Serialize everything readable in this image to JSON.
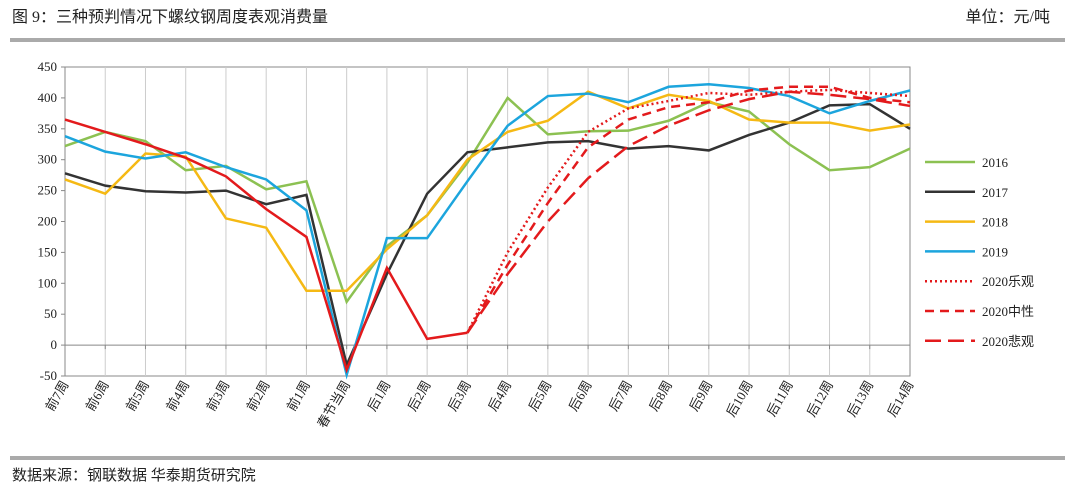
{
  "header": {
    "title": "图 9：三种预判情况下螺纹钢周度表观消费量",
    "unit": "单位：元/吨"
  },
  "footer": {
    "source": "数据来源：钢联数据 华泰期货研究院"
  },
  "chart_data": {
    "type": "line",
    "categories": [
      "前7周",
      "前6周",
      "前5周",
      "前4周",
      "前3周",
      "前2周",
      "前1周",
      "春节当周",
      "后1周",
      "后2周",
      "后3周",
      "后4周",
      "后5周",
      "后6周",
      "后7周",
      "后8周",
      "后9周",
      "后10周",
      "后11周",
      "后12周",
      "后13周",
      "后14周"
    ],
    "ylim": [
      -50,
      450
    ],
    "yticks": [
      -50,
      0,
      50,
      100,
      150,
      200,
      250,
      300,
      350,
      400,
      450
    ],
    "grid": true,
    "legend": "right",
    "series": [
      {
        "name": "2016",
        "color": "#8cc152",
        "style": "solid",
        "values": [
          322,
          345,
          330,
          283,
          290,
          252,
          265,
          70,
          160,
          210,
          295,
          400,
          341,
          346,
          347,
          363,
          393,
          378,
          325,
          283,
          288,
          318
        ]
      },
      {
        "name": "2017",
        "color": "#333333",
        "style": "solid",
        "values": [
          278,
          258,
          249,
          247,
          250,
          228,
          243,
          -32,
          115,
          245,
          312,
          320,
          328,
          330,
          318,
          322,
          315,
          340,
          360,
          388,
          390,
          350
        ]
      },
      {
        "name": "2018",
        "color": "#f5b914",
        "style": "solid",
        "values": [
          268,
          245,
          310,
          305,
          205,
          190,
          88,
          88,
          155,
          210,
          300,
          345,
          363,
          410,
          383,
          405,
          395,
          365,
          360,
          360,
          347,
          357
        ]
      },
      {
        "name": "2019",
        "color": "#1ca5dd",
        "style": "solid",
        "values": [
          338,
          313,
          302,
          312,
          288,
          268,
          218,
          -48,
          173,
          173,
          265,
          355,
          403,
          407,
          393,
          418,
          422,
          416,
          403,
          375,
          395,
          412
        ]
      },
      {
        "name": "2020乐观",
        "color": "#e31a1c",
        "style": "dotted",
        "values": [
          365,
          345,
          325,
          303,
          273,
          220,
          175,
          -40,
          125,
          10,
          20,
          150,
          255,
          345,
          383,
          395,
          408,
          405,
          410,
          413,
          408,
          403
        ]
      },
      {
        "name": "2020中性",
        "color": "#e31a1c",
        "style": "dashed",
        "values": [
          null,
          null,
          null,
          null,
          null,
          null,
          null,
          null,
          null,
          null,
          20,
          130,
          230,
          320,
          365,
          385,
          393,
          412,
          418,
          418,
          400,
          393
        ]
      },
      {
        "name": "2020悲观",
        "color": "#e31a1c",
        "style": "longdash",
        "values": [
          null,
          null,
          null,
          null,
          null,
          null,
          null,
          null,
          null,
          null,
          20,
          115,
          200,
          270,
          322,
          355,
          380,
          398,
          410,
          405,
          398,
          387
        ]
      }
    ]
  }
}
